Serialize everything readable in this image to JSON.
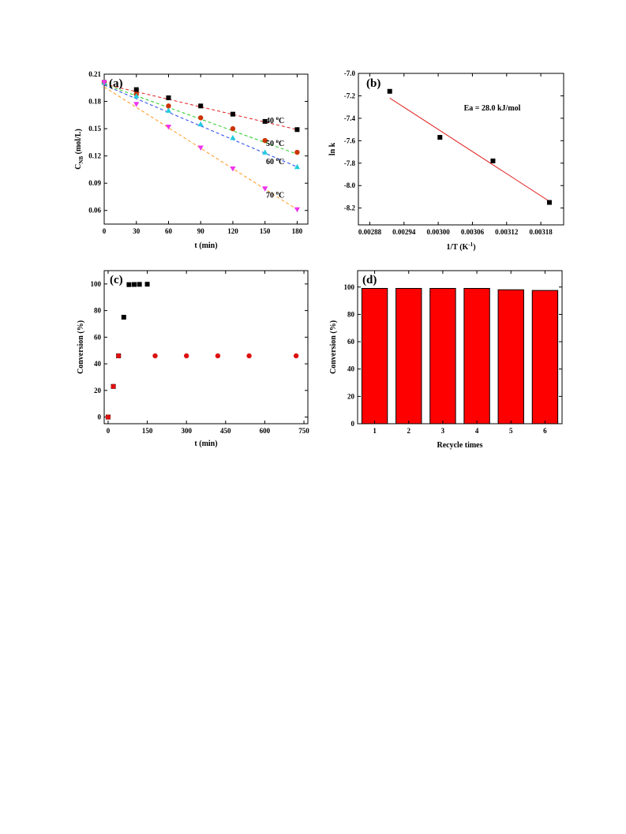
{
  "chart_data": [
    {
      "type": "scatter",
      "panel_label": "(a)",
      "xlabel": "t (min)",
      "ylabel_main": "C",
      "ylabel_sub": "NB",
      "ylabel_tail": " (mol/L)",
      "xlim": [
        0,
        190
      ],
      "ylim": [
        0.045,
        0.21
      ],
      "xticks": [
        "0",
        "30",
        "60",
        "90",
        "120",
        "150",
        "180"
      ],
      "yticks": [
        "0.06",
        "0.09",
        "0.12",
        "0.15",
        "0.18",
        "0.21"
      ],
      "series": [
        {
          "label": "40 °C",
          "label_main": "40 ",
          "label_sup": "o",
          "label_tail": "C",
          "color": "#000000",
          "fit_color": "#e02020",
          "marker": "square",
          "x": [
            0,
            30,
            60,
            90,
            120,
            150,
            180
          ],
          "y": [
            0.201,
            0.193,
            0.184,
            0.175,
            0.166,
            0.158,
            0.149
          ],
          "fit": [
            0.199,
            0.149
          ]
        },
        {
          "label": "50 °C",
          "label_main": "50 ",
          "label_sup": "o",
          "label_tail": "C",
          "color": "#cc3300",
          "fit_color": "#22cc22",
          "marker": "circle",
          "x": [
            0,
            30,
            60,
            90,
            120,
            150,
            180
          ],
          "y": [
            0.201,
            0.188,
            0.175,
            0.162,
            0.15,
            0.137,
            0.124
          ],
          "fit": [
            0.199,
            0.122
          ]
        },
        {
          "label": "60 °C",
          "label_main": "60 ",
          "label_sup": "o",
          "label_tail": "C",
          "color": "#22ccdd",
          "fit_color": "#2244ee",
          "marker": "triangle-up",
          "x": [
            0,
            30,
            60,
            90,
            120,
            150,
            180
          ],
          "y": [
            0.201,
            0.186,
            0.17,
            0.155,
            0.14,
            0.124,
            0.108
          ],
          "fit": [
            0.198,
            0.108
          ]
        },
        {
          "label": "70 °C",
          "label_main": "70 ",
          "label_sup": "o",
          "label_tail": "C",
          "color": "#ee33ee",
          "fit_color": "#ff9922",
          "marker": "triangle-down",
          "x": [
            0,
            30,
            60,
            90,
            120,
            150,
            180
          ],
          "y": [
            0.201,
            0.177,
            0.152,
            0.129,
            0.106,
            0.084,
            0.061
          ],
          "fit": [
            0.196,
            0.061
          ]
        }
      ]
    },
    {
      "type": "scatter",
      "panel_label": "(b)",
      "xlabel": "1/T (K",
      "xlabel_sup": "-1",
      "xlabel_tail": ")",
      "ylabel": "ln k",
      "xlim": [
        0.00286,
        0.00322
      ],
      "ylim": [
        -8.35,
        -7.0
      ],
      "xticks": [
        "0.00288",
        "0.00294",
        "0.00300",
        "0.00306",
        "0.00312",
        "0.00318"
      ],
      "yticks": [
        "-7.0",
        "-7.2",
        "-7.4",
        "-7.6",
        "-7.8",
        "-8.0",
        "-8.2"
      ],
      "annotation": "Ea = 28.0 kJ/mol",
      "points": {
        "x": [
          0.002915,
          0.003003,
          0.003096,
          0.003195
        ],
        "y": [
          -7.16,
          -7.57,
          -7.78,
          -8.15
        ]
      },
      "fit": {
        "x": [
          0.002915,
          0.003195
        ],
        "y": [
          -7.22,
          -8.14
        ],
        "color": "#e02020"
      }
    },
    {
      "type": "scatter",
      "panel_label": "(c)",
      "xlabel": "t (min)",
      "ylabel": "Conversion (%)",
      "xlim": [
        -15,
        765
      ],
      "ylim": [
        -5,
        110
      ],
      "xticks": [
        "0",
        "150",
        "300",
        "450",
        "600",
        "750"
      ],
      "yticks": [
        "0",
        "20",
        "40",
        "60",
        "80",
        "100"
      ],
      "series": [
        {
          "color": "#000000",
          "marker": "square",
          "x": [
            0,
            20,
            40,
            60,
            80,
            100,
            120,
            150
          ],
          "y": [
            0,
            23,
            46,
            75,
            99.5,
            99.6,
            99.7,
            99.8
          ]
        },
        {
          "color": "#dd1111",
          "marker": "circle",
          "x": [
            0,
            20,
            40,
            180,
            300,
            420,
            540,
            720
          ],
          "y": [
            0,
            23,
            46,
            46,
            46,
            46,
            46,
            46
          ]
        }
      ]
    },
    {
      "type": "bar",
      "panel_label": "(d)",
      "xlabel": "Recycle times",
      "ylabel": "Conversion (%)",
      "categories": [
        "1",
        "2",
        "3",
        "4",
        "5",
        "6"
      ],
      "values": [
        99,
        99,
        99,
        99,
        98,
        97.5
      ],
      "ylim": [
        0,
        112
      ],
      "yticks": [
        "0",
        "20",
        "40",
        "60",
        "80",
        "100"
      ],
      "bar_color": "#ff0000"
    }
  ]
}
